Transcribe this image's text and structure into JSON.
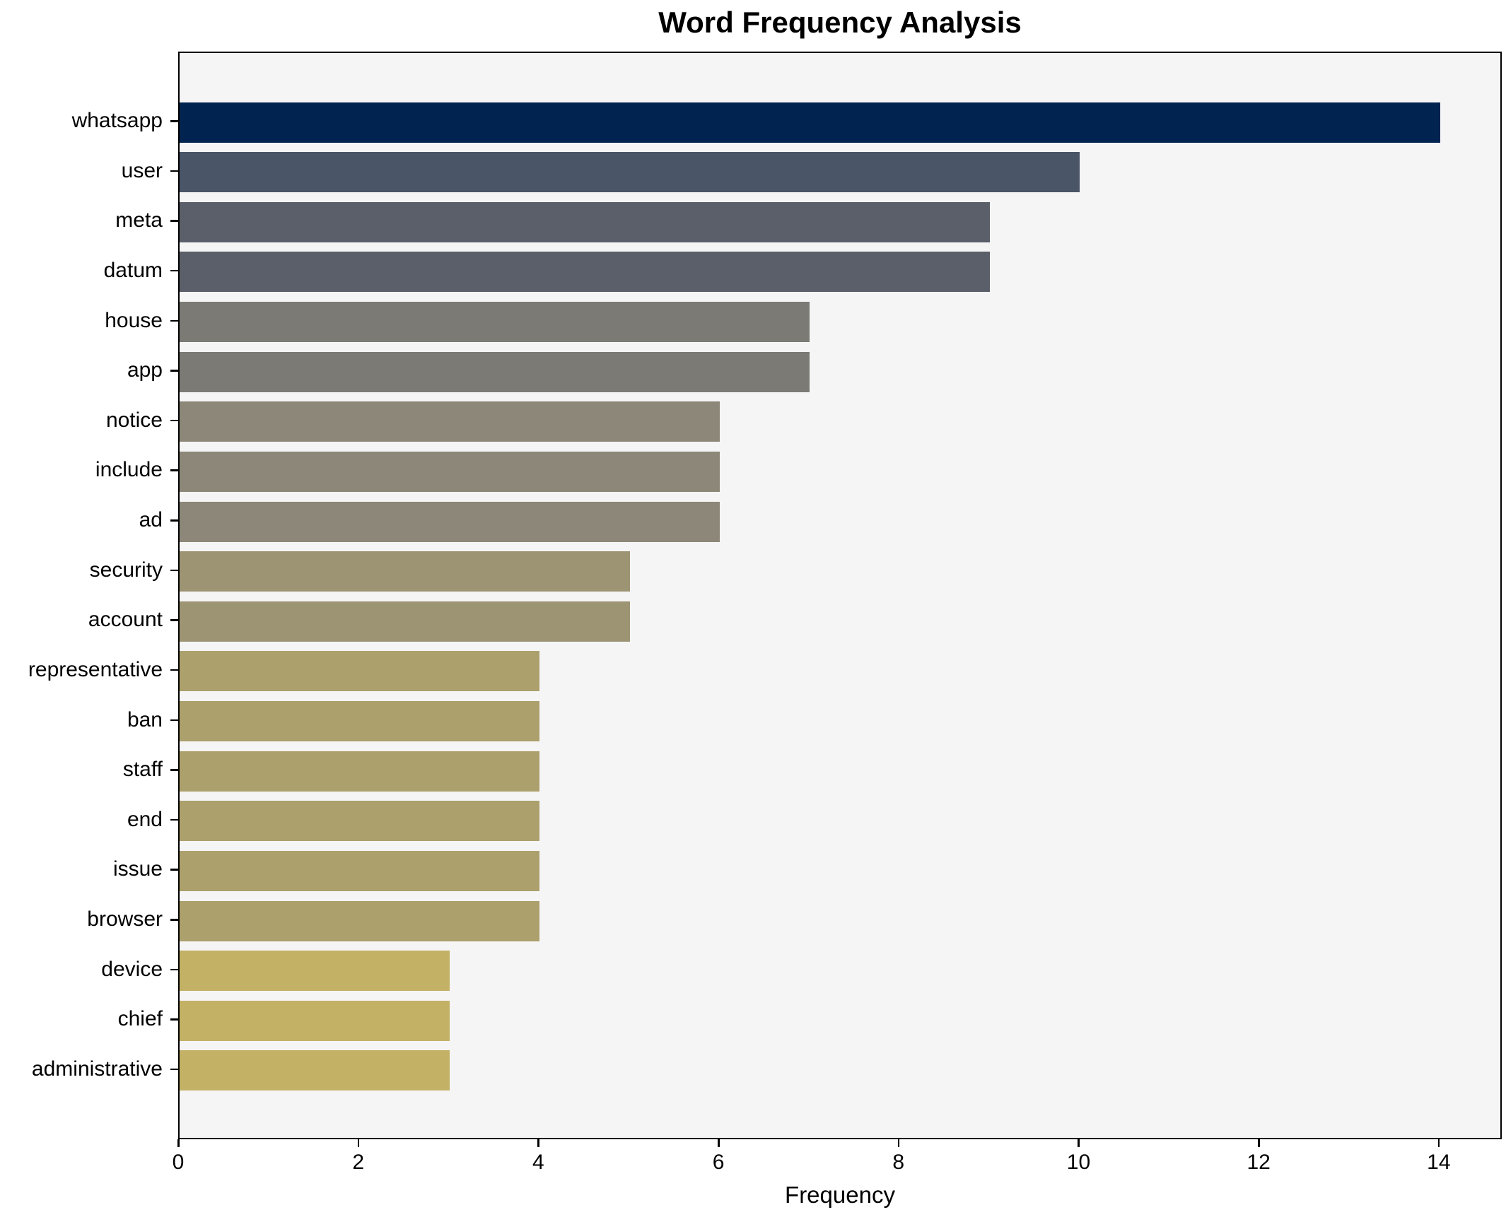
{
  "chart_data": {
    "type": "bar",
    "orientation": "horizontal",
    "title": "Word Frequency Analysis",
    "xlabel": "Frequency",
    "ylabel": "",
    "categories": [
      "whatsapp",
      "user",
      "meta",
      "datum",
      "house",
      "app",
      "notice",
      "include",
      "ad",
      "security",
      "account",
      "representative",
      "ban",
      "staff",
      "end",
      "issue",
      "browser",
      "device",
      "chief",
      "administrative"
    ],
    "values": [
      14,
      10,
      9,
      9,
      7,
      7,
      6,
      6,
      6,
      5,
      5,
      4,
      4,
      4,
      4,
      4,
      4,
      3,
      3,
      3
    ],
    "bar_colors": [
      "#012350",
      "#4a5568",
      "#5a5f6a",
      "#5a5f6a",
      "#7b7a74",
      "#7b7a74",
      "#8d8779",
      "#8d8779",
      "#8d8779",
      "#9d9473",
      "#9d9473",
      "#aca06c",
      "#aca06c",
      "#aca06c",
      "#aca06c",
      "#aca06c",
      "#aca06c",
      "#c3b166",
      "#c3b166",
      "#c3b166"
    ],
    "x_ticks": [
      0,
      2,
      4,
      6,
      8,
      10,
      12,
      14
    ],
    "xlim": [
      0,
      14.7
    ],
    "grid": false,
    "legend_position": "none",
    "plot_background": "#f5f5f5",
    "figure_background": "#ffffff",
    "text_color": "#000000"
  }
}
